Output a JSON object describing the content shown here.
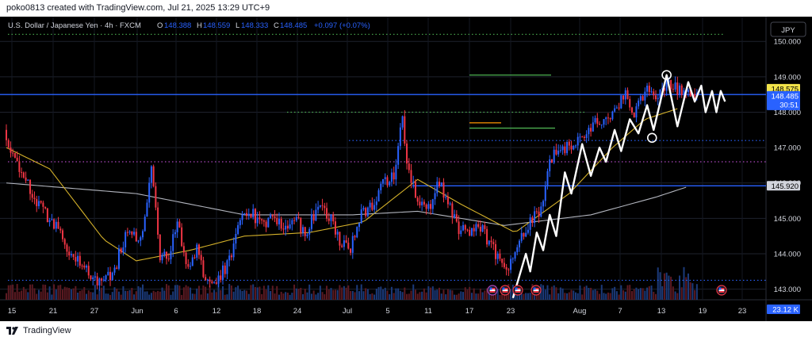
{
  "header": {
    "text": "poko0813 created with TradingView.com, Jul 21, 2025 13:29 UTC+9"
  },
  "footer": {
    "brand": "TradingView"
  },
  "symbol": {
    "name": "U.S. Dollar / Japanese Yen · 4h · FXCM",
    "open_label": "O",
    "open": "148.388",
    "high_label": "H",
    "high": "148.559",
    "low_label": "L",
    "low": "148.333",
    "close_label": "C",
    "close": "148.485",
    "change": "+0.097 (+0.07%)"
  },
  "currency_badge": "JPY",
  "price_axis": {
    "ticks": [
      "150.000",
      "149.000",
      "148.000",
      "147.000",
      "146.000",
      "145.000",
      "144.000",
      "143.000"
    ],
    "tick_values": [
      150,
      149,
      148,
      147,
      146,
      145,
      144,
      143
    ],
    "badges": [
      {
        "text": "148.575",
        "value": 148.575,
        "bg": "#f2e34a",
        "fg": "#000000"
      },
      {
        "text": "148.485",
        "sub": "30:51",
        "value": 148.485,
        "bg": "#2962ff",
        "fg": "#ffffff"
      },
      {
        "text": "145.920",
        "value": 145.92,
        "bg": "#d1d4dc",
        "fg": "#000000"
      },
      {
        "text": "23.12 K",
        "bg": "#2962ff",
        "fg": "#ffffff"
      }
    ]
  },
  "time_axis": {
    "labels": [
      "15",
      "21",
      "27",
      "Jun",
      "6",
      "12",
      "18",
      "24",
      "Jul",
      "5",
      "11",
      "17",
      "23",
      "Aug",
      "7",
      "13",
      "19",
      "23"
    ]
  },
  "colors": {
    "background": "#000000",
    "up": "#2962ff",
    "down": "#f23645",
    "ma_slow": "#b2b5be",
    "ma_fast": "#d4b12a",
    "zigzag": "#ffffff",
    "blue_line": "#2962ff",
    "green_line": "#4caf50"
  },
  "chart_data": {
    "type": "candlestick",
    "timeframe": "4h",
    "yrange": [
      142.7,
      150.7
    ],
    "candles_per_day": 6,
    "period": "mid May – Jul 21, 2025",
    "price_path": [
      [
        0,
        147.5
      ],
      [
        4,
        146.8
      ],
      [
        9,
        146.2
      ],
      [
        14,
        145.6
      ],
      [
        18,
        145.2
      ],
      [
        24,
        144.8
      ],
      [
        30,
        144.0
      ],
      [
        36,
        143.8
      ],
      [
        41,
        143.2
      ],
      [
        47,
        143.4
      ],
      [
        50,
        143.3
      ],
      [
        54,
        144.2
      ],
      [
        58,
        144.8
      ],
      [
        63,
        144.3
      ],
      [
        68,
        146.5
      ],
      [
        72,
        143.9
      ],
      [
        76,
        143.9
      ],
      [
        80,
        144.9
      ],
      [
        85,
        143.6
      ],
      [
        89,
        144.1
      ],
      [
        94,
        143.1
      ],
      [
        99,
        143.3
      ],
      [
        104,
        143.8
      ],
      [
        109,
        145.0
      ],
      [
        114,
        145.2
      ],
      [
        119,
        144.8
      ],
      [
        124,
        145.1
      ],
      [
        129,
        144.7
      ],
      [
        134,
        145.0
      ],
      [
        139,
        144.6
      ],
      [
        145,
        145.3
      ],
      [
        150,
        145.1
      ],
      [
        155,
        144.4
      ],
      [
        160,
        144.2
      ],
      [
        165,
        145.1
      ],
      [
        170,
        145.4
      ],
      [
        175,
        146.0
      ],
      [
        180,
        146.2
      ],
      [
        184,
        147.9
      ],
      [
        186,
        146.6
      ],
      [
        191,
        145.4
      ],
      [
        196,
        145.3
      ],
      [
        201,
        146.0
      ],
      [
        206,
        145.3
      ],
      [
        210,
        144.7
      ],
      [
        215,
        144.6
      ],
      [
        220,
        144.8
      ],
      [
        224,
        144.3
      ],
      [
        228,
        143.9
      ],
      [
        232,
        143.6
      ],
      [
        236,
        144.0
      ],
      [
        241,
        144.7
      ],
      [
        248,
        145.3
      ],
      [
        252,
        146.6
      ],
      [
        256,
        147.0
      ],
      [
        261,
        147.0
      ],
      [
        266,
        147.3
      ],
      [
        271,
        147.6
      ],
      [
        276,
        147.8
      ],
      [
        281,
        147.9
      ],
      [
        287,
        148.6
      ],
      [
        291,
        147.9
      ],
      [
        297,
        148.7
      ],
      [
        302,
        148.4
      ],
      [
        306,
        148.8
      ],
      [
        313,
        148.6
      ],
      [
        319,
        148.5
      ]
    ],
    "moving_averages": [
      {
        "name": "slow",
        "color": "#b2b5be",
        "points": [
          [
            0,
            146.0
          ],
          [
            60,
            145.7
          ],
          [
            110,
            145.1
          ],
          [
            160,
            145.1
          ],
          [
            190,
            145.2
          ],
          [
            230,
            144.8
          ],
          [
            270,
            145.1
          ],
          [
            300,
            145.6
          ],
          [
            315,
            145.9
          ]
        ]
      },
      {
        "name": "fast",
        "color": "#d4b12a",
        "points": [
          [
            0,
            147.0
          ],
          [
            20,
            146.4
          ],
          [
            45,
            144.4
          ],
          [
            60,
            143.8
          ],
          [
            85,
            144.1
          ],
          [
            110,
            144.5
          ],
          [
            140,
            144.6
          ],
          [
            165,
            144.9
          ],
          [
            190,
            146.1
          ],
          [
            210,
            145.4
          ],
          [
            235,
            144.6
          ],
          [
            260,
            145.7
          ],
          [
            280,
            147.0
          ],
          [
            295,
            147.8
          ],
          [
            310,
            148.1
          ]
        ]
      }
    ],
    "zigzag": [
      [
        234,
        142.75
      ],
      [
        240,
        144.0
      ],
      [
        242,
        143.5
      ],
      [
        245,
        144.6
      ],
      [
        248,
        144.1
      ],
      [
        251,
        145.1
      ],
      [
        254,
        144.5
      ],
      [
        258,
        146.3
      ],
      [
        261,
        145.7
      ],
      [
        266,
        147.1
      ],
      [
        270,
        146.2
      ],
      [
        274,
        147.0
      ],
      [
        277,
        146.6
      ],
      [
        281,
        147.5
      ],
      [
        284,
        146.9
      ],
      [
        288,
        147.8
      ],
      [
        292,
        147.4
      ],
      [
        296,
        148.2
      ],
      [
        299,
        147.5
      ],
      [
        305,
        149.05
      ],
      [
        310,
        147.6
      ],
      [
        315,
        148.85
      ],
      [
        318,
        148.3
      ],
      [
        321,
        148.75
      ],
      [
        323,
        148.0
      ],
      [
        326,
        148.6
      ],
      [
        328,
        148.0
      ],
      [
        330,
        148.6
      ],
      [
        332,
        148.3
      ]
    ],
    "horizontal_levels": [
      {
        "value": 148.5,
        "color": "#2962ff",
        "style": "solid"
      },
      {
        "value": 145.92,
        "color": "#2962ff",
        "style": "solid"
      },
      {
        "value": 150.2,
        "color": "#4caf50",
        "style": "dotted"
      },
      {
        "value": 148.0,
        "color": "#4caf50",
        "style": "dotted"
      },
      {
        "value": 147.2,
        "color": "#2962ff",
        "style": "dotted"
      },
      {
        "value": 146.6,
        "color": "#ab47bc",
        "style": "dotted"
      },
      {
        "value": 143.25,
        "color": "#2962ff",
        "style": "dotted"
      },
      {
        "value": 149.05,
        "color": "#4caf50",
        "style": "solid"
      },
      {
        "value": 147.55,
        "color": "#4caf50",
        "style": "solid"
      },
      {
        "value": 147.7,
        "color": "#ff9800",
        "style": "solid"
      }
    ],
    "volume_peak": "23.12 K"
  }
}
